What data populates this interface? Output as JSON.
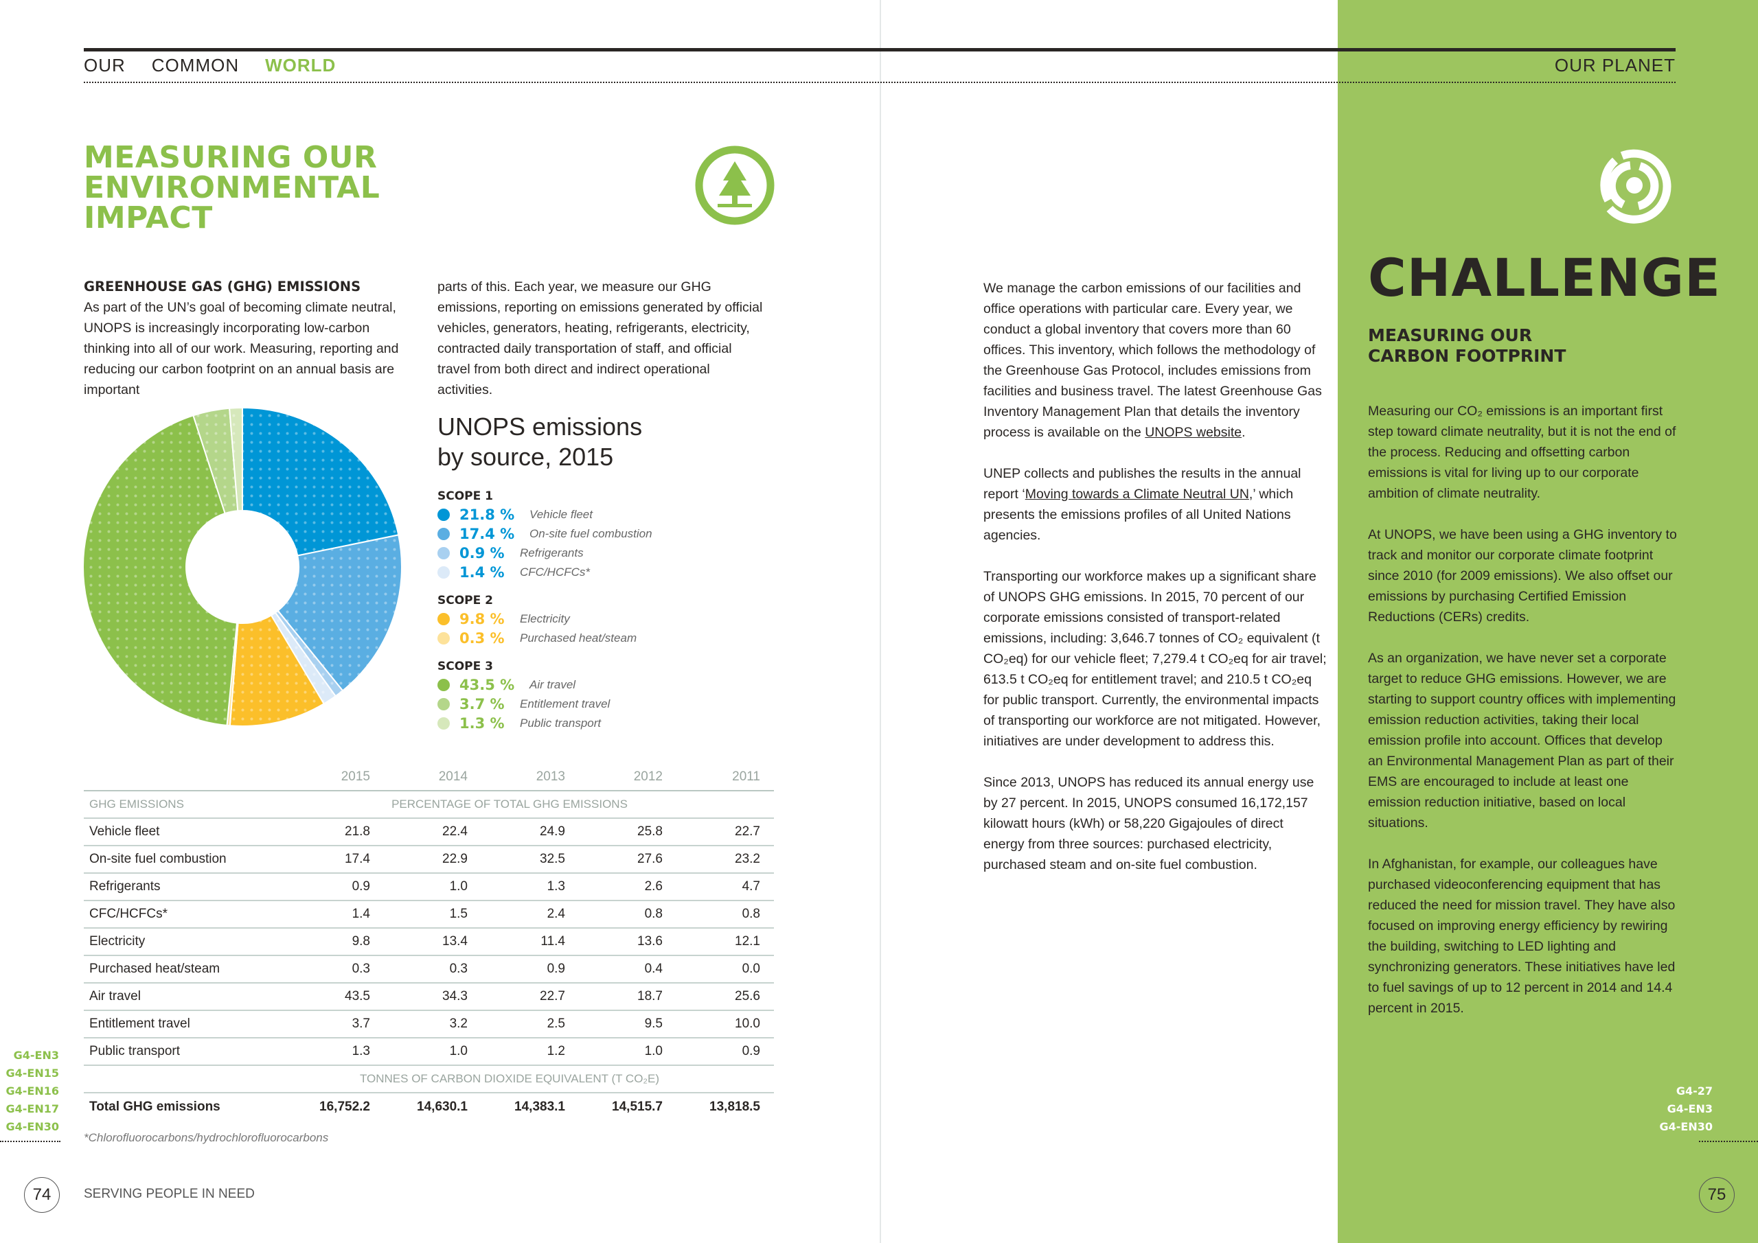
{
  "header": {
    "left": [
      "OUR",
      "COMMON",
      "WORLD"
    ],
    "right": "OUR PLANET"
  },
  "left_page": {
    "title": [
      "MEASURING OUR",
      "ENVIRONMENTAL",
      "IMPACT"
    ],
    "section_heading": "GREENHOUSE GAS (GHG) EMISSIONS",
    "col1": "As part of the UN’s goal of becoming climate neutral, UNOPS is increasingly incorporating low-carbon thinking into all of our work. Measuring, reporting and reducing our carbon footprint on an annual basis are important",
    "col2": "parts of this. Each year, we measure our GHG emissions, reporting on emissions generated by official vehicles, generators, heating, refrigerants, electricity, contracted daily transportation of staff, and official travel from both direct and indirect operational activities.",
    "footnote": "*Chlorofluorocarbons/hydrochlorofluorocarbons",
    "gri_codes": [
      "G4-EN3",
      "G4-EN15",
      "G4-EN16",
      "G4-EN17",
      "G4-EN30"
    ],
    "page_number": "74",
    "footer": "SERVING PEOPLE IN NEED"
  },
  "chart_data": {
    "type": "pie",
    "title": "UNOPS emissions by source, 2015",
    "title_lines": [
      "UNOPS emissions",
      "by source, 2015"
    ],
    "groups": [
      {
        "name": "SCOPE 1",
        "color": "#0096d6",
        "items": [
          {
            "label": "Vehicle fleet",
            "value": 21.8,
            "pct": "21.8 %",
            "color": "#0096d6"
          },
          {
            "label": "On-site fuel combustion",
            "value": 17.4,
            "pct": "17.4 %",
            "color": "#5aaee2"
          },
          {
            "label": "Refrigerants",
            "value": 0.9,
            "pct": "0.9 %",
            "color": "#a8d0f0"
          },
          {
            "label": "CFC/HCFCs*",
            "value": 1.4,
            "pct": "1.4 %",
            "color": "#dceaf8"
          }
        ]
      },
      {
        "name": "SCOPE 2",
        "color": "#fbbf2a",
        "items": [
          {
            "label": "Electricity",
            "value": 9.8,
            "pct": "9.8 %",
            "color": "#fbbf2a"
          },
          {
            "label": "Purchased heat/steam",
            "value": 0.3,
            "pct": "0.3 %",
            "color": "#fde29a"
          }
        ]
      },
      {
        "name": "SCOPE 3",
        "color": "#8cc04b",
        "items": [
          {
            "label": "Air travel",
            "value": 43.5,
            "pct": "43.5 %",
            "color": "#8cc04b"
          },
          {
            "label": "Entitlement travel",
            "value": 3.7,
            "pct": "3.7 %",
            "color": "#b4d68a"
          },
          {
            "label": "Public transport",
            "value": 1.3,
            "pct": "1.3 %",
            "color": "#d6e8bb"
          }
        ]
      }
    ]
  },
  "table": {
    "years": [
      "2015",
      "2014",
      "2013",
      "2012",
      "2011"
    ],
    "row_header": "GHG EMISSIONS",
    "pct_header": "PERCENTAGE OF TOTAL GHG EMISSIONS",
    "rows": [
      {
        "label": "Vehicle fleet",
        "values": [
          "21.8",
          "22.4",
          "24.9",
          "25.8",
          "22.7"
        ]
      },
      {
        "label": "On-site fuel combustion",
        "values": [
          "17.4",
          "22.9",
          "32.5",
          "27.6",
          "23.2"
        ]
      },
      {
        "label": "Refrigerants",
        "values": [
          "0.9",
          "1.0",
          "1.3",
          "2.6",
          "4.7"
        ]
      },
      {
        "label": "CFC/HCFCs*",
        "values": [
          "1.4",
          "1.5",
          "2.4",
          "0.8",
          "0.8"
        ]
      },
      {
        "label": "Electricity",
        "values": [
          "9.8",
          "13.4",
          "11.4",
          "13.6",
          "12.1"
        ]
      },
      {
        "label": "Purchased heat/steam",
        "values": [
          "0.3",
          "0.3",
          "0.9",
          "0.4",
          "0.0"
        ]
      },
      {
        "label": "Air travel",
        "values": [
          "43.5",
          "34.3",
          "22.7",
          "18.7",
          "25.6"
        ]
      },
      {
        "label": "Entitlement travel",
        "values": [
          "3.7",
          "3.2",
          "2.5",
          "9.5",
          "10.0"
        ]
      },
      {
        "label": "Public transport",
        "values": [
          "1.3",
          "1.0",
          "1.2",
          "1.0",
          "0.9"
        ]
      }
    ],
    "units_header": "TONNES OF CARBON DIOXIDE EQUIVALENT (T CO₂E)",
    "total": {
      "label": "Total GHG emissions",
      "values": [
        "16,752.2",
        "14,630.1",
        "14,383.1",
        "14,515.7",
        "13,818.5"
      ]
    }
  },
  "middle": {
    "p1_before": "We manage the carbon emissions of our facilities and office operations with particular care. Every year, we conduct a global inventory that covers more than 60 offices. This inventory, which follows the methodology of the Greenhouse Gas Protocol, includes emissions from facilities and business travel. The latest Greenhouse Gas Inventory Management Plan that details the inventory process is available on the ",
    "p1_link": "UNOPS website",
    "p1_after": ".",
    "p2_before": "UNEP collects and publishes the results in the annual report ‘",
    "p2_link": "Moving towards a Climate Neutral UN",
    "p2_after": ",’ which presents the emissions profiles of all United Nations agencies.",
    "p3": "Transporting our workforce makes up a significant share of UNOPS GHG emissions. In 2015, 70 percent of our corporate emissions consisted of transport-related emissions, including: 3,646.7 tonnes of CO₂ equivalent (t CO₂eq) for our vehicle fleet; 7,279.4 t CO₂eq for air travel; 613.5 t CO₂eq for entitlement travel; and 210.5 t CO₂eq for public transport. Currently, the environmental impacts of transporting our workforce are not mitigated. However, initiatives are under development to address this.",
    "p4": "Since 2013, UNOPS has reduced its annual energy use by 27 percent. In 2015, UNOPS consumed 16,172,157 kilowatt hours (kWh) or 58,220 Gigajoules of direct energy from three sources: purchased electricity, purchased steam and on-site fuel combustion."
  },
  "panel": {
    "title": "CHALLENGE",
    "subtitle": [
      "MEASURING OUR",
      "CARBON FOOTPRINT"
    ],
    "paragraphs": [
      "Measuring our CO₂ emissions is an important first step toward climate neutrality, but it is not the end of the process. Reducing and offsetting carbon emissions is vital for living up to our corporate ambition of climate neutrality.",
      "At UNOPS, we have been using a GHG inventory to track and monitor our corporate climate footprint since 2010 (for 2009 emissions). We also offset our emissions by purchasing Certified Emission Reductions (CERs) credits.",
      "As an organization, we have never set a corporate target to reduce GHG emissions. However, we are starting to support country offices with implementing emission reduction activities, taking their local emission profile into account. Offices that develop an Environmental Management Plan as part of their EMS are encouraged to include at least one emission reduction initiative, based on local situations.",
      "In Afghanistan, for example, our colleagues have purchased videoconferencing equipment that has reduced the need for mission travel. They have also focused on improving energy efficiency by rewiring the building, switching to LED lighting and synchronizing generators. These initiatives have led to fuel savings of up to 12 percent in 2014 and 14.4 percent in 2015."
    ],
    "gri_codes": [
      "G4-27",
      "G4-EN3",
      "G4-EN30"
    ],
    "page_number": "75",
    "color": "#9dc55f"
  },
  "icons": {
    "left": "tree-icon",
    "right": "target-maze-icon"
  }
}
